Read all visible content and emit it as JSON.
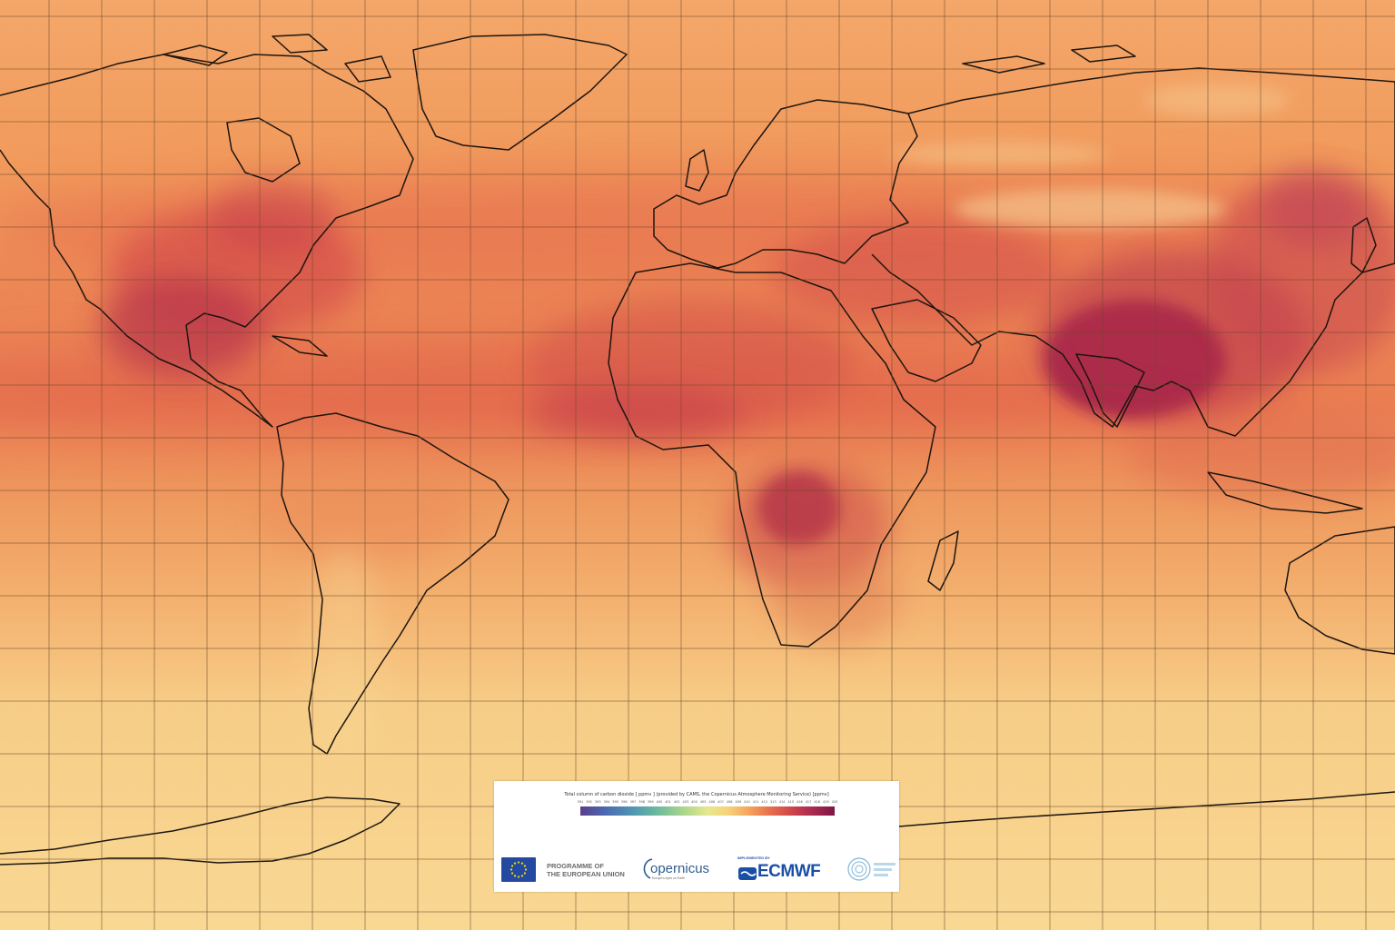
{
  "map": {
    "name": "Total column carbon dioxide world map",
    "projection": "plate-carree",
    "graticule": true,
    "colormap": "purple-blue-green-yellow-orange-red-maroon",
    "colors": {
      "low": "#f7d98d",
      "mid": "#ef9a57",
      "high": "#d9584a",
      "peak": "#a0224a",
      "coastline": "#1a1a1a",
      "grid": "#6b4a2a"
    },
    "hotspots": [
      "North America",
      "Central America",
      "Sahel",
      "Central Africa",
      "India",
      "Bangladesh",
      "East China"
    ]
  },
  "legend": {
    "title": "Total column of carbon dioxide [ ppmv ] (provided by CAMS, the Copernicus Atmosphere Monitoring Service) [ppmv]",
    "ticks": [
      "391",
      "392",
      "393",
      "394",
      "395",
      "396",
      "397",
      "398",
      "399",
      "400",
      "401",
      "402",
      "403",
      "404",
      "405",
      "406",
      "407",
      "408",
      "409",
      "410",
      "411",
      "412",
      "413",
      "414",
      "415",
      "416",
      "417",
      "418",
      "419",
      "420"
    ]
  },
  "logos": {
    "eu_line1": "PROGRAMME OF",
    "eu_line2": "THE EUROPEAN UNION",
    "copernicus": "opernicus",
    "copernicus_tagline": "Europe's eyes on Earth",
    "ecmwf_implemented": "IMPLEMENTED BY",
    "ecmwf": "ECMWF",
    "eu_flag_icon": "eu-flag-icon",
    "cams_icon": "cams-icon"
  }
}
